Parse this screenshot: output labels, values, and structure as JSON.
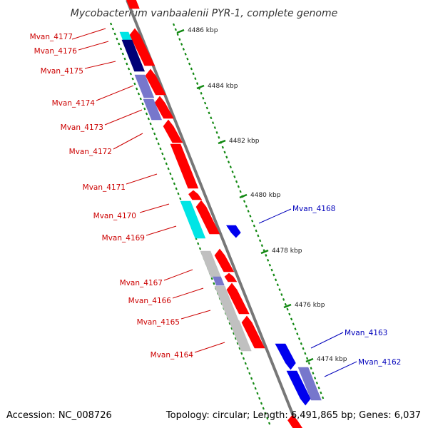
{
  "title": "Mycobacterium vanbaalenii PYR-1, complete genome",
  "accession": "Accession: NC_008726",
  "summary": "Topology: circular; Length: 6,491,865 bp; Genes: 6,037",
  "colors": {
    "backbone": "#777777",
    "forward_cds": "#ff0000",
    "reverse_cds": "#0000ee",
    "light_blue": "#7777cc",
    "dark_blue": "#000077",
    "cyan": "#00e5e5",
    "grey": "#c0c0c0",
    "tick_green": "#118811",
    "label_red": "#cc0000",
    "label_blue": "#0000bb"
  },
  "scale_ticks": [
    "4486 kbp",
    "4484 kbp",
    "4482 kbp",
    "4480 kbp",
    "4478 kbp",
    "4476 kbp",
    "4474 kbp"
  ],
  "gene_labels_left": [
    "Mvan_4177",
    "Mvan_4176",
    "Mvan_4175",
    "Mvan_4174",
    "Mvan_4173",
    "Mvan_4172",
    "Mvan_4171",
    "Mvan_4170",
    "Mvan_4169",
    "Mvan_4167",
    "Mvan_4166",
    "Mvan_4165",
    "Mvan_4164"
  ],
  "gene_labels_right": [
    "Mvan_4168",
    "Mvan_4163",
    "Mvan_4162"
  ]
}
